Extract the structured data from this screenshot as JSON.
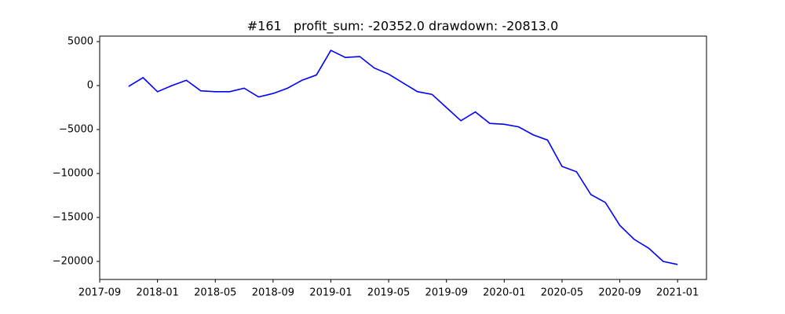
{
  "chart_data": {
    "type": "line",
    "title": "#161   profit_sum: -20352.0 drawdown: -20813.0",
    "x": [
      "2017-11",
      "2017-12",
      "2018-01",
      "2018-02",
      "2018-03",
      "2018-04",
      "2018-05",
      "2018-06",
      "2018-07",
      "2018-08",
      "2018-09",
      "2018-10",
      "2018-11",
      "2018-12",
      "2019-01",
      "2019-02",
      "2019-03",
      "2019-04",
      "2019-05",
      "2019-06",
      "2019-07",
      "2019-08",
      "2019-09",
      "2019-10",
      "2019-11",
      "2019-12",
      "2020-01",
      "2020-02",
      "2020-03",
      "2020-04",
      "2020-05",
      "2020-06",
      "2020-07",
      "2020-08",
      "2020-09",
      "2020-10",
      "2020-11",
      "2020-12",
      "2021-01"
    ],
    "series": [
      {
        "color": "#0000ff",
        "values": [
          -100,
          900,
          -700,
          0,
          600,
          -600,
          -700,
          -700,
          -300,
          -1300,
          -900,
          -300,
          600,
          1200,
          4000,
          3200,
          3300,
          2000,
          1300,
          300,
          -700,
          -1000,
          -2500,
          -4000,
          -3000,
          -4300,
          -4400,
          -4700,
          -5600,
          -6200,
          -9200,
          -9800,
          -12400,
          -13300,
          -15900,
          -17500,
          -18500,
          -20000,
          -20352
        ]
      }
    ],
    "xlim": [
      "2017-09",
      "2021-03"
    ],
    "xticks": [
      "2017-09",
      "2018-01",
      "2018-05",
      "2018-09",
      "2019-01",
      "2019-05",
      "2019-09",
      "2020-01",
      "2020-05",
      "2020-09",
      "2021-01"
    ],
    "ylim": [
      -22054,
      5625
    ],
    "yticks": [
      {
        "value": -20000,
        "label": "−20000"
      },
      {
        "value": -15000,
        "label": "−15000"
      },
      {
        "value": -10000,
        "label": "−10000"
      },
      {
        "value": -5000,
        "label": "−5000"
      },
      0,
      5000
    ],
    "grid": false
  }
}
